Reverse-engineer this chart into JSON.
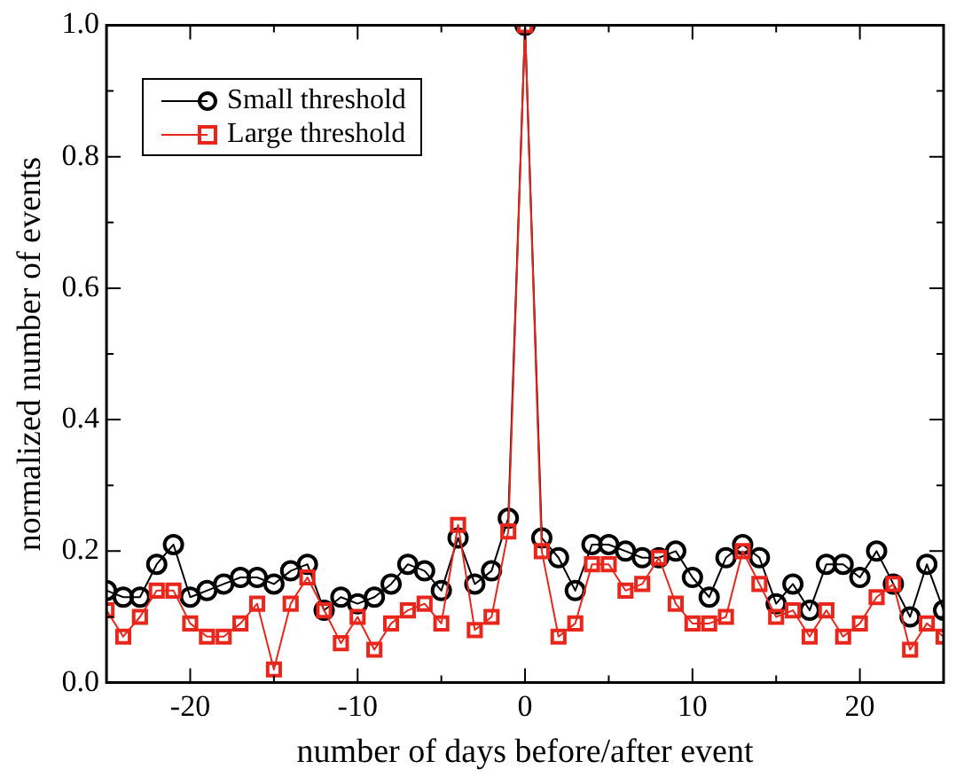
{
  "chart_data": {
    "type": "line",
    "xlabel": "number of days before/after event",
    "ylabel": "normalized number of events",
    "x": [
      -25,
      -24,
      -23,
      -22,
      -21,
      -20,
      -19,
      -18,
      -17,
      -16,
      -15,
      -14,
      -13,
      -12,
      -11,
      -10,
      -9,
      -8,
      -7,
      -6,
      -5,
      -4,
      -3,
      -2,
      -1,
      0,
      1,
      2,
      3,
      4,
      5,
      6,
      7,
      8,
      9,
      10,
      11,
      12,
      13,
      14,
      15,
      16,
      17,
      18,
      19,
      20,
      21,
      22,
      23,
      24,
      25
    ],
    "series": [
      {
        "name": "Small threshold",
        "color": "#000000",
        "marker": "circle",
        "values": [
          0.14,
          0.13,
          0.13,
          0.18,
          0.21,
          0.13,
          0.14,
          0.15,
          0.16,
          0.16,
          0.15,
          0.17,
          0.18,
          0.11,
          0.13,
          0.12,
          0.13,
          0.15,
          0.18,
          0.17,
          0.14,
          0.22,
          0.15,
          0.17,
          0.25,
          1.0,
          0.22,
          0.19,
          0.14,
          0.21,
          0.21,
          0.2,
          0.19,
          0.19,
          0.2,
          0.16,
          0.13,
          0.19,
          0.21,
          0.19,
          0.12,
          0.15,
          0.11,
          0.18,
          0.18,
          0.16,
          0.2,
          0.15,
          0.1,
          0.18,
          0.11
        ]
      },
      {
        "name": "Large threshold",
        "color": "#e8261c",
        "marker": "square",
        "values": [
          0.11,
          0.07,
          0.1,
          0.14,
          0.14,
          0.09,
          0.07,
          0.07,
          0.09,
          0.12,
          0.02,
          0.12,
          0.16,
          0.11,
          0.06,
          0.1,
          0.05,
          0.09,
          0.11,
          0.12,
          0.09,
          0.24,
          0.08,
          0.1,
          0.23,
          1.0,
          0.2,
          0.07,
          0.09,
          0.18,
          0.18,
          0.14,
          0.15,
          0.19,
          0.12,
          0.09,
          0.09,
          0.1,
          0.2,
          0.15,
          0.1,
          0.11,
          0.07,
          0.11,
          0.07,
          0.09,
          0.13,
          0.15,
          0.05,
          0.09,
          0.07
        ]
      }
    ],
    "xlim": [
      -25,
      25
    ],
    "xticks": [
      -20,
      {
        "value": -15,
        "label": null
      },
      -10,
      {
        "value": -5,
        "label": null
      },
      0,
      {
        "value": 5,
        "label": null
      },
      10,
      {
        "value": 15,
        "label": null
      },
      20
    ],
    "ylim": [
      0,
      1
    ],
    "yticks": [
      "0.0",
      {
        "value": 0.1,
        "label": null
      },
      {
        "value": 0.2,
        "label": "0.2"
      },
      {
        "value": 0.3,
        "label": null
      },
      {
        "value": 0.4,
        "label": "0.4"
      },
      {
        "value": 0.5,
        "label": null
      },
      {
        "value": 0.6,
        "label": "0.6"
      },
      {
        "value": 0.7,
        "label": null
      },
      {
        "value": 0.8,
        "label": "0.8"
      },
      {
        "value": 0.9,
        "label": null
      },
      {
        "value": 1,
        "label": "1.0"
      }
    ],
    "grid": false,
    "legend": "top left",
    "line_style": "solid"
  }
}
